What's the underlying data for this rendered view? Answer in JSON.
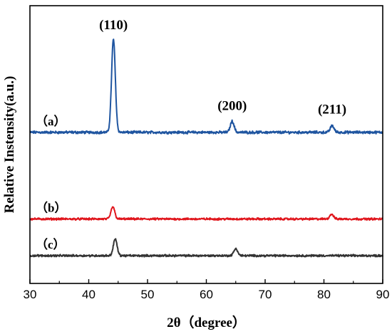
{
  "chart_data": {
    "type": "line",
    "xlabel": "2θ（degree）",
    "ylabel": "Relative Instensity(a.u.)",
    "xlim": [
      30,
      90
    ],
    "xticks": [
      "30",
      "40",
      "50",
      "60",
      "70",
      "80",
      "90"
    ],
    "yticks_shown": false,
    "grid": false,
    "series": [
      {
        "name": "（a）",
        "color": "#1f55a0",
        "baseline": 5.9,
        "peaks": [
          {
            "x": 44.2,
            "height": 4.2
          },
          {
            "x": 64.4,
            "height": 0.5
          },
          {
            "x": 81.4,
            "height": 0.3
          }
        ]
      },
      {
        "name": "（b）",
        "color": "#e0151c",
        "baseline": 2.0,
        "peaks": [
          {
            "x": 44.1,
            "height": 0.55
          },
          {
            "x": 81.3,
            "height": 0.22
          }
        ]
      },
      {
        "name": "（c）",
        "color": "#333333",
        "baseline": 0.35,
        "peaks": [
          {
            "x": 44.5,
            "height": 0.75
          },
          {
            "x": 65.0,
            "height": 0.32
          }
        ]
      }
    ],
    "annotations": [
      {
        "text": "(110)",
        "x": 44.2,
        "y": 10.55
      },
      {
        "text": "(200)",
        "x": 64.4,
        "y": 6.9
      },
      {
        "text": "(211)",
        "x": 81.4,
        "y": 6.75
      }
    ],
    "ylim": [
      -0.9,
      11.6
    ]
  }
}
